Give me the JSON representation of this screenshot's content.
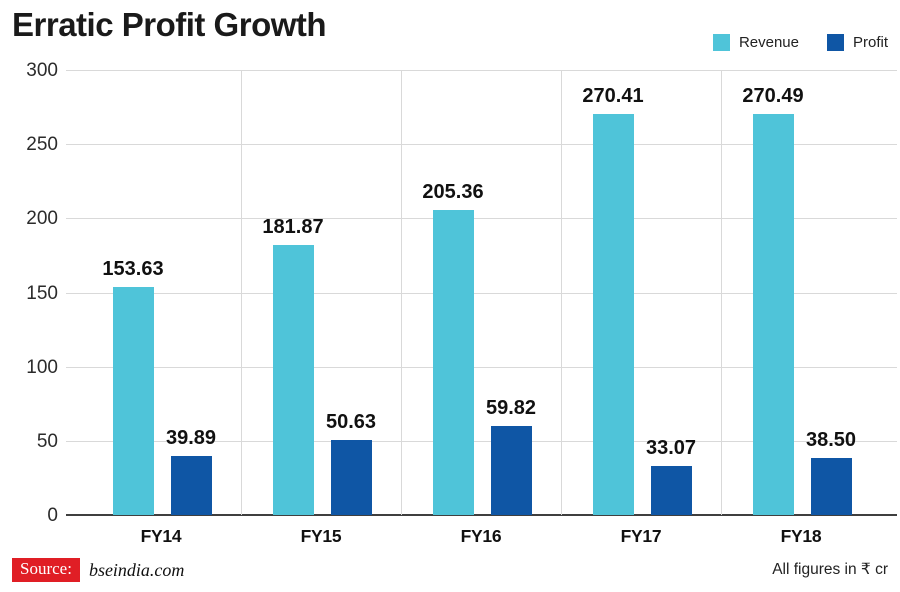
{
  "title": "Erratic Profit Growth",
  "chart_data": {
    "type": "bar",
    "title": "Erratic Profit Growth",
    "categories": [
      "FY14",
      "FY15",
      "FY16",
      "FY17",
      "FY18"
    ],
    "series": [
      {
        "name": "Revenue",
        "color": "#4fc4d9",
        "values": [
          153.63,
          181.87,
          205.36,
          270.41,
          270.49
        ]
      },
      {
        "name": "Profit",
        "color": "#0f56a5",
        "values": [
          39.89,
          50.63,
          59.82,
          33.07,
          38.5
        ]
      }
    ],
    "xlabel": "",
    "ylabel": "",
    "ylim": [
      0,
      300
    ],
    "yticks": [
      300,
      250,
      200,
      150,
      100,
      50,
      0
    ],
    "grid": true,
    "value_labels": true,
    "legend_position": "top-right",
    "unit_note": "All figures in ₹ cr"
  },
  "footer": {
    "source_label": "Source:",
    "source_value": "bseindia.com",
    "note": "All figures in ₹ cr"
  },
  "colors": {
    "revenue": "#4fc4d9",
    "profit": "#0f56a5",
    "grid": "#d9d9d9",
    "axis_line": "#3f3f3f",
    "source_badge_bg": "#e01e25",
    "source_badge_text": "#ffffff",
    "text": "#1a1a1a"
  }
}
